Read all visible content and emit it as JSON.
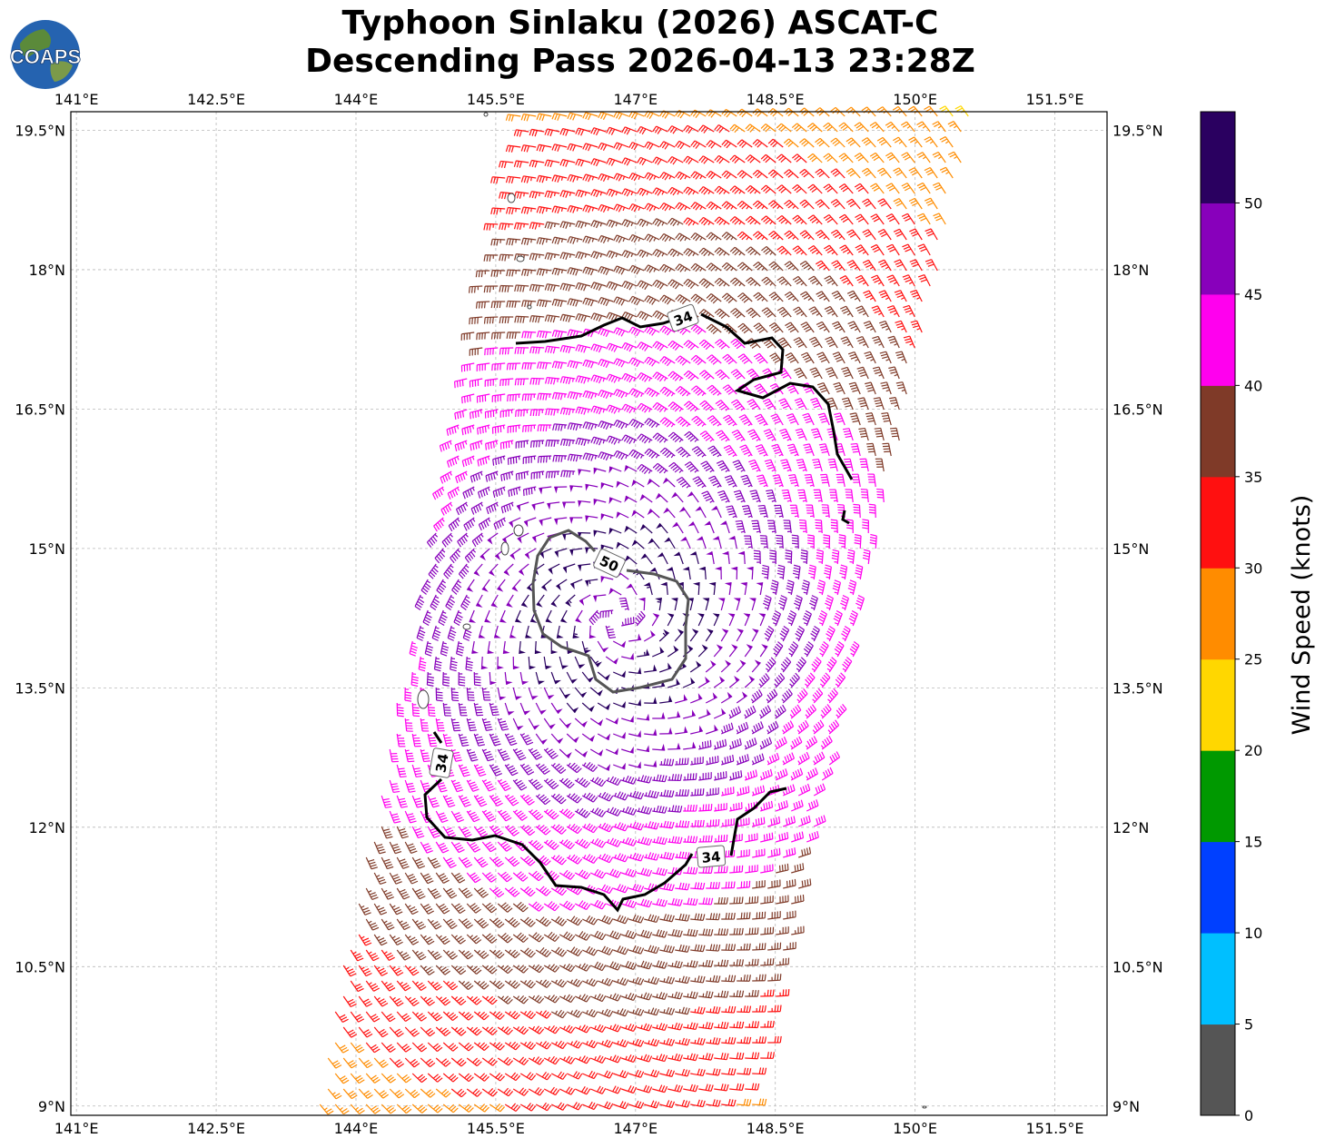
{
  "title": {
    "line1": "Typhoon Sinlaku (2026) ASCAT-C",
    "line2": "Descending Pass 2026-04-13 23:28Z"
  },
  "logo_text": "COAPS",
  "map": {
    "lon_ticks": [
      "141°E",
      "142.5°E",
      "144°E",
      "145.5°E",
      "147°E",
      "148.5°E",
      "150°E",
      "151.5°E"
    ],
    "lat_ticks": [
      "19.5°N",
      "18°N",
      "16.5°N",
      "15°N",
      "13.5°N",
      "12°N",
      "10.5°N",
      "9°N"
    ],
    "lon_range": [
      140.94,
      152.06
    ],
    "lat_range": [
      8.9,
      19.7
    ],
    "gridlines": true
  },
  "contours": {
    "c34": "34",
    "c50": "50"
  },
  "colorbar": {
    "label": "Wind Speed (knots)",
    "ticks": [
      "0",
      "5",
      "10",
      "15",
      "20",
      "25",
      "30",
      "35",
      "40",
      "45",
      "50"
    ],
    "colors": [
      "#555555",
      "#00bfff",
      "#0040ff",
      "#009900",
      "#ffd700",
      "#ff8c00",
      "#ff1010",
      "#7f3a28",
      "#ff00ee",
      "#8800bb",
      "#2a0060"
    ],
    "bounds": [
      0,
      5,
      10,
      15,
      20,
      25,
      30,
      35,
      40,
      45,
      50,
      55
    ]
  },
  "storm": {
    "center_lon": 146.8,
    "center_lat": 14.25
  }
}
